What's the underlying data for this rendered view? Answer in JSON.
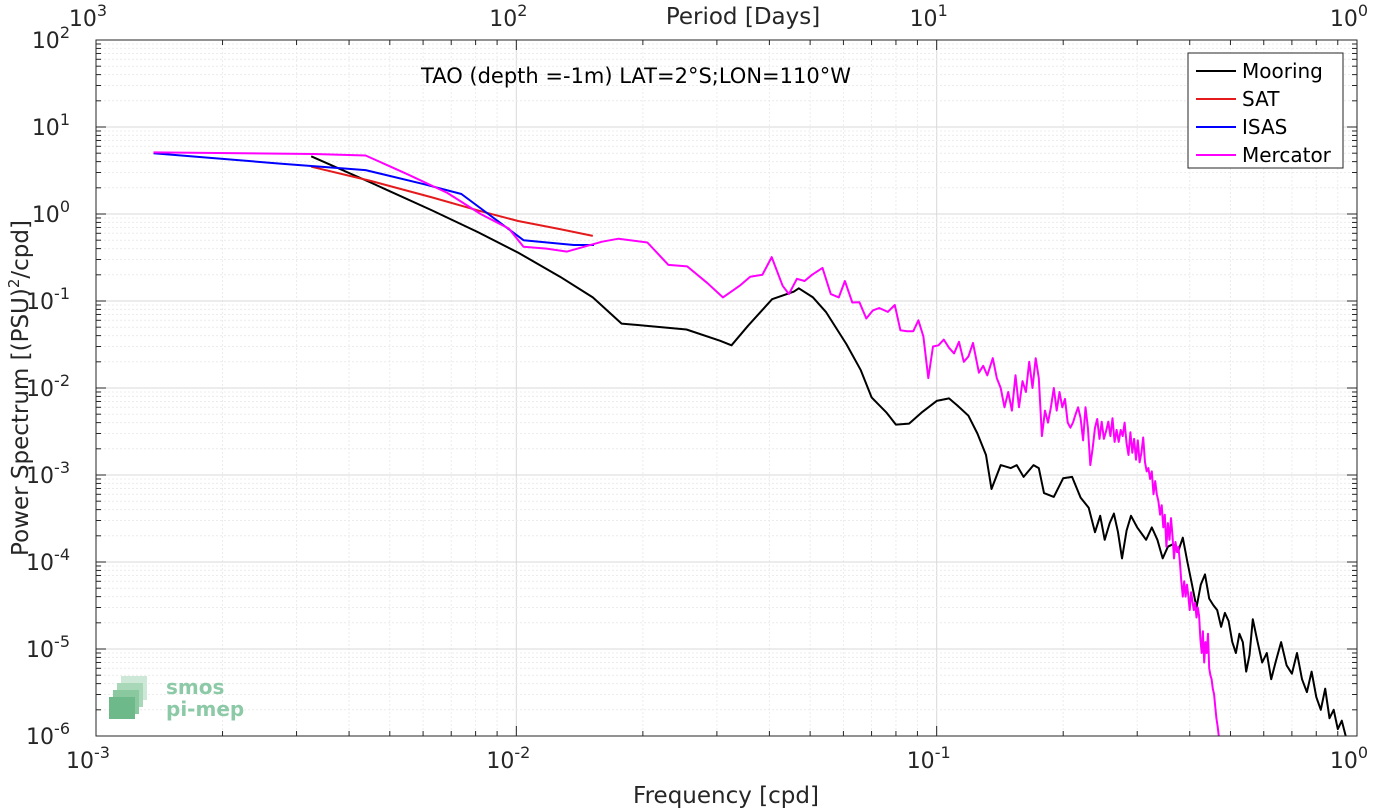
{
  "chart_data": {
    "type": "line",
    "title": "TAO (depth =-1m) LAT=2°S;LON=110°W",
    "xlabel": "Frequency [cpd]",
    "ylabel_main": "Power Spectrum [(PSU)",
    "ylabel_sup": "2",
    "ylabel_tail": "/cpd]",
    "top_axis_label": "Period [Days]",
    "xscale": "log",
    "yscale": "log",
    "xlim": [
      0.001,
      1
    ],
    "ylim": [
      1e-06,
      100
    ],
    "grid": true,
    "legend_position": "top-right",
    "x_ticks": [
      {
        "base": "10",
        "exp": "-3"
      },
      {
        "base": "10",
        "exp": "-2"
      },
      {
        "base": "10",
        "exp": "-1"
      },
      {
        "base": "10",
        "exp": "0"
      }
    ],
    "top_ticks": [
      {
        "base": "10",
        "exp": "3"
      },
      {
        "base": "10",
        "exp": "2"
      },
      {
        "base": "10",
        "exp": "1"
      },
      {
        "base": "10",
        "exp": "0"
      }
    ],
    "y_ticks": [
      {
        "base": "10",
        "exp": "-6"
      },
      {
        "base": "10",
        "exp": "-5"
      },
      {
        "base": "10",
        "exp": "-4"
      },
      {
        "base": "10",
        "exp": "-3"
      },
      {
        "base": "10",
        "exp": "-2"
      },
      {
        "base": "10",
        "exp": "-1"
      },
      {
        "base": "10",
        "exp": "0"
      },
      {
        "base": "10",
        "exp": "1"
      },
      {
        "base": "10",
        "exp": "2"
      }
    ],
    "series": [
      {
        "name": "Mooring",
        "color": "#000000",
        "points": [
          [
            0.00325,
            4.6
          ],
          [
            0.0045,
            2.3
          ],
          [
            0.0063,
            1.1
          ],
          [
            0.0081,
            0.62
          ],
          [
            0.0101,
            0.36
          ],
          [
            0.0127,
            0.19
          ],
          [
            0.0152,
            0.11
          ],
          [
            0.0178,
            0.055
          ],
          [
            0.0203,
            0.052
          ],
          [
            0.0254,
            0.047
          ],
          [
            0.0305,
            0.035
          ],
          [
            0.0325,
            0.031
          ],
          [
            0.0356,
            0.052
          ],
          [
            0.0406,
            0.105
          ],
          [
            0.0457,
            0.128
          ],
          [
            0.047,
            0.14
          ],
          [
            0.0508,
            0.11
          ],
          [
            0.0545,
            0.075
          ],
          [
            0.061,
            0.032
          ],
          [
            0.066,
            0.016
          ],
          [
            0.07,
            0.0078
          ],
          [
            0.076,
            0.0052
          ],
          [
            0.08,
            0.0038
          ],
          [
            0.086,
            0.0039
          ],
          [
            0.092,
            0.0052
          ],
          [
            0.1,
            0.0071
          ],
          [
            0.107,
            0.0076
          ],
          [
            0.112,
            0.0063
          ],
          [
            0.119,
            0.0048
          ],
          [
            0.125,
            0.003
          ],
          [
            0.131,
            0.0017
          ],
          [
            0.135,
            0.00069
          ],
          [
            0.142,
            0.0013
          ],
          [
            0.15,
            0.0012
          ],
          [
            0.155,
            0.0013
          ],
          [
            0.161,
            0.00095
          ],
          [
            0.17,
            0.0013
          ],
          [
            0.175,
            0.0012
          ],
          [
            0.18,
            0.00062
          ],
          [
            0.19,
            0.00056
          ],
          [
            0.2,
            0.00092
          ],
          [
            0.21,
            0.00095
          ],
          [
            0.22,
            0.00055
          ],
          [
            0.23,
            0.00042
          ],
          [
            0.238,
            0.00022
          ],
          [
            0.245,
            0.00034
          ],
          [
            0.251,
            0.00018
          ],
          [
            0.258,
            0.00028
          ],
          [
            0.264,
            0.00036
          ],
          [
            0.27,
            0.00022
          ],
          [
            0.276,
            0.00011
          ],
          [
            0.283,
            0.00023
          ],
          [
            0.29,
            0.00034
          ],
          [
            0.3,
            0.00025
          ],
          [
            0.315,
            0.00018
          ],
          [
            0.325,
            0.00025
          ],
          [
            0.335,
            0.00018
          ],
          [
            0.345,
            0.00011
          ],
          [
            0.355,
            0.00015
          ],
          [
            0.365,
            0.00016
          ],
          [
            0.375,
            0.00013
          ],
          [
            0.385,
            0.00019
          ],
          [
            0.395,
            0.0001
          ],
          [
            0.405,
            5.5e-05
          ],
          [
            0.415,
            3e-05
          ],
          [
            0.425,
            5.5e-05
          ],
          [
            0.435,
            7.2e-05
          ],
          [
            0.445,
            3.8e-05
          ],
          [
            0.455,
            3.2e-05
          ],
          [
            0.465,
            2.8e-05
          ],
          [
            0.475,
            1.8e-05
          ],
          [
            0.485,
            2.6e-05
          ],
          [
            0.495,
            2.1e-05
          ],
          [
            0.505,
            1.2e-05
          ],
          [
            0.515,
            9e-06
          ],
          [
            0.525,
            1.5e-05
          ],
          [
            0.535,
            1.2e-05
          ],
          [
            0.545,
            5.5e-06
          ],
          [
            0.555,
            8.5e-06
          ],
          [
            0.565,
            2.2e-05
          ],
          [
            0.58,
            1.2e-05
          ],
          [
            0.595,
            7e-06
          ],
          [
            0.61,
            9e-06
          ],
          [
            0.625,
            4.5e-06
          ],
          [
            0.64,
            7e-06
          ],
          [
            0.66,
            1.2e-05
          ],
          [
            0.68,
            6.5e-06
          ],
          [
            0.7,
            5.2e-06
          ],
          [
            0.72,
            9e-06
          ],
          [
            0.74,
            4.5e-06
          ],
          [
            0.76,
            3.2e-06
          ],
          [
            0.78,
            5.5e-06
          ],
          [
            0.8,
            2.8e-06
          ],
          [
            0.82,
            2e-06
          ],
          [
            0.84,
            3.5e-06
          ],
          [
            0.86,
            1.6e-06
          ],
          [
            0.88,
            2e-06
          ],
          [
            0.9,
            1.2e-06
          ],
          [
            0.92,
            1.5e-06
          ],
          [
            0.94,
            1e-06
          ]
        ]
      },
      {
        "name": "SAT",
        "color": "#e41a1c",
        "points": [
          [
            0.00325,
            3.5
          ],
          [
            0.0045,
            2.4
          ],
          [
            0.0063,
            1.55
          ],
          [
            0.0081,
            1.1
          ],
          [
            0.0101,
            0.83
          ],
          [
            0.0127,
            0.67
          ],
          [
            0.0152,
            0.56
          ]
        ]
      },
      {
        "name": "ISAS",
        "color": "#0000ff",
        "points": [
          [
            0.00137,
            5.0
          ],
          [
            0.00274,
            3.8
          ],
          [
            0.00438,
            3.2
          ],
          [
            0.00603,
            2.2
          ],
          [
            0.0074,
            1.7
          ],
          [
            0.0104,
            0.5
          ],
          [
            0.0137,
            0.44
          ],
          [
            0.0153,
            0.44
          ]
        ]
      },
      {
        "name": "Mercator",
        "color": "#ff00ff",
        "points": [
          [
            0.00137,
            5.1
          ],
          [
            0.0033,
            4.9
          ],
          [
            0.00438,
            4.7
          ],
          [
            0.00548,
            2.9
          ],
          [
            0.00685,
            1.75
          ],
          [
            0.00822,
            1.0
          ],
          [
            0.0096,
            0.68
          ],
          [
            0.0104,
            0.42
          ],
          [
            0.0118,
            0.4
          ],
          [
            0.0132,
            0.37
          ],
          [
            0.016,
            0.48
          ],
          [
            0.0175,
            0.52
          ],
          [
            0.0205,
            0.47
          ],
          [
            0.023,
            0.26
          ],
          [
            0.0255,
            0.25
          ],
          [
            0.0285,
            0.16
          ],
          [
            0.031,
            0.11
          ],
          [
            0.034,
            0.15
          ],
          [
            0.036,
            0.19
          ],
          [
            0.0385,
            0.2
          ],
          [
            0.0405,
            0.32
          ],
          [
            0.043,
            0.15
          ],
          [
            0.0445,
            0.12
          ],
          [
            0.0465,
            0.18
          ],
          [
            0.0485,
            0.17
          ],
          [
            0.0505,
            0.2
          ],
          [
            0.0535,
            0.24
          ],
          [
            0.056,
            0.12
          ],
          [
            0.0585,
            0.11
          ],
          [
            0.0605,
            0.17
          ],
          [
            0.063,
            0.096
          ],
          [
            0.0655,
            0.097
          ],
          [
            0.068,
            0.063
          ],
          [
            0.0705,
            0.078
          ],
          [
            0.073,
            0.083
          ],
          [
            0.0765,
            0.075
          ],
          [
            0.0795,
            0.09
          ],
          [
            0.082,
            0.046
          ],
          [
            0.085,
            0.045
          ],
          [
            0.088,
            0.045
          ],
          [
            0.0905,
            0.06
          ],
          [
            0.093,
            0.039
          ],
          [
            0.0955,
            0.013
          ],
          [
            0.098,
            0.03
          ],
          [
            0.101,
            0.031
          ],
          [
            0.104,
            0.036
          ],
          [
            0.107,
            0.029
          ],
          [
            0.11,
            0.025
          ],
          [
            0.113,
            0.034
          ],
          [
            0.116,
            0.02
          ],
          [
            0.119,
            0.023
          ],
          [
            0.122,
            0.033
          ],
          [
            0.126,
            0.015
          ],
          [
            0.129,
            0.018
          ],
          [
            0.132,
            0.014
          ],
          [
            0.136,
            0.022
          ],
          [
            0.139,
            0.013
          ],
          [
            0.142,
            0.01
          ],
          [
            0.145,
            0.006
          ],
          [
            0.148,
            0.009
          ],
          [
            0.151,
            0.0055
          ],
          [
            0.154,
            0.014
          ],
          [
            0.157,
            0.006
          ],
          [
            0.16,
            0.012
          ],
          [
            0.163,
            0.009
          ],
          [
            0.166,
            0.02
          ],
          [
            0.169,
            0.01
          ],
          [
            0.172,
            0.022
          ],
          [
            0.175,
            0.013
          ],
          [
            0.178,
            0.0028
          ],
          [
            0.181,
            0.0055
          ],
          [
            0.184,
            0.004
          ],
          [
            0.187,
            0.006
          ],
          [
            0.19,
            0.01
          ],
          [
            0.193,
            0.0055
          ],
          [
            0.196,
            0.009
          ],
          [
            0.199,
            0.006
          ],
          [
            0.202,
            0.0075
          ],
          [
            0.205,
            0.004
          ],
          [
            0.208,
            0.0035
          ],
          [
            0.211,
            0.004
          ],
          [
            0.214,
            0.005
          ],
          [
            0.217,
            0.006
          ],
          [
            0.22,
            0.0045
          ],
          [
            0.223,
            0.0025
          ],
          [
            0.226,
            0.006
          ],
          [
            0.229,
            0.0035
          ],
          [
            0.232,
            0.0013
          ],
          [
            0.235,
            0.002
          ],
          [
            0.238,
            0.0035
          ],
          [
            0.241,
            0.0044
          ],
          [
            0.244,
            0.0026
          ],
          [
            0.247,
            0.0041
          ],
          [
            0.25,
            0.0026
          ],
          [
            0.253,
            0.0032
          ],
          [
            0.256,
            0.0041
          ],
          [
            0.259,
            0.0028
          ],
          [
            0.262,
            0.0045
          ],
          [
            0.265,
            0.0024
          ],
          [
            0.268,
            0.0033
          ],
          [
            0.271,
            0.0024
          ],
          [
            0.274,
            0.0033
          ],
          [
            0.277,
            0.0028
          ],
          [
            0.28,
            0.004
          ],
          [
            0.283,
            0.0023
          ],
          [
            0.286,
            0.0017
          ],
          [
            0.289,
            0.0031
          ],
          [
            0.292,
            0.0018
          ],
          [
            0.295,
            0.0026
          ],
          [
            0.298,
            0.0015
          ],
          [
            0.301,
            0.0025
          ],
          [
            0.304,
            0.0014
          ],
          [
            0.307,
            0.0018
          ],
          [
            0.31,
            0.0027
          ],
          [
            0.313,
            0.0014
          ],
          [
            0.316,
            0.0011
          ],
          [
            0.319,
            0.0012
          ],
          [
            0.322,
            0.0009
          ],
          [
            0.325,
            0.0011
          ],
          [
            0.328,
            0.0006
          ],
          [
            0.331,
            0.00085
          ],
          [
            0.334,
            0.0006
          ],
          [
            0.337,
            0.0005
          ],
          [
            0.34,
            0.00035
          ],
          [
            0.343,
            0.00045
          ],
          [
            0.346,
            0.00025
          ],
          [
            0.349,
            0.00035
          ],
          [
            0.352,
            0.00015
          ],
          [
            0.355,
            0.00028
          ],
          [
            0.358,
            0.00018
          ],
          [
            0.361,
            0.00032
          ],
          [
            0.364,
            0.0002
          ],
          [
            0.367,
            0.00011
          ],
          [
            0.37,
            0.00017
          ],
          [
            0.373,
            0.00013
          ],
          [
            0.376,
            0.00015
          ],
          [
            0.379,
            0.0001
          ],
          [
            0.382,
            6e-05
          ],
          [
            0.385,
            4e-05
          ],
          [
            0.388,
            6e-05
          ],
          [
            0.391,
            4e-05
          ],
          [
            0.394,
            5.5e-05
          ],
          [
            0.397,
            4e-05
          ],
          [
            0.4,
            2.8e-05
          ],
          [
            0.403,
            4.5e-05
          ],
          [
            0.406,
            3.5e-05
          ],
          [
            0.409,
            2.8e-05
          ],
          [
            0.412,
            3.4e-05
          ],
          [
            0.415,
            2.3e-05
          ],
          [
            0.418,
            3e-05
          ],
          [
            0.421,
            2.4e-05
          ],
          [
            0.424,
            1.3e-05
          ],
          [
            0.427,
            9e-06
          ],
          [
            0.43,
            1.6e-05
          ],
          [
            0.433,
            7e-06
          ],
          [
            0.436,
            1.2e-05
          ],
          [
            0.439,
            9e-06
          ],
          [
            0.442,
            1.5e-05
          ],
          [
            0.445,
            6e-06
          ],
          [
            0.448,
            5e-06
          ],
          [
            0.451,
            4.5e-06
          ],
          [
            0.454,
            3.5e-06
          ],
          [
            0.457,
            3e-06
          ],
          [
            0.46,
            2.2e-06
          ],
          [
            0.463,
            1.6e-06
          ],
          [
            0.466,
            1.3e-06
          ],
          [
            0.469,
            1e-06
          ]
        ]
      }
    ]
  },
  "logo": {
    "line1": "smos",
    "line2": "pi-mep"
  }
}
